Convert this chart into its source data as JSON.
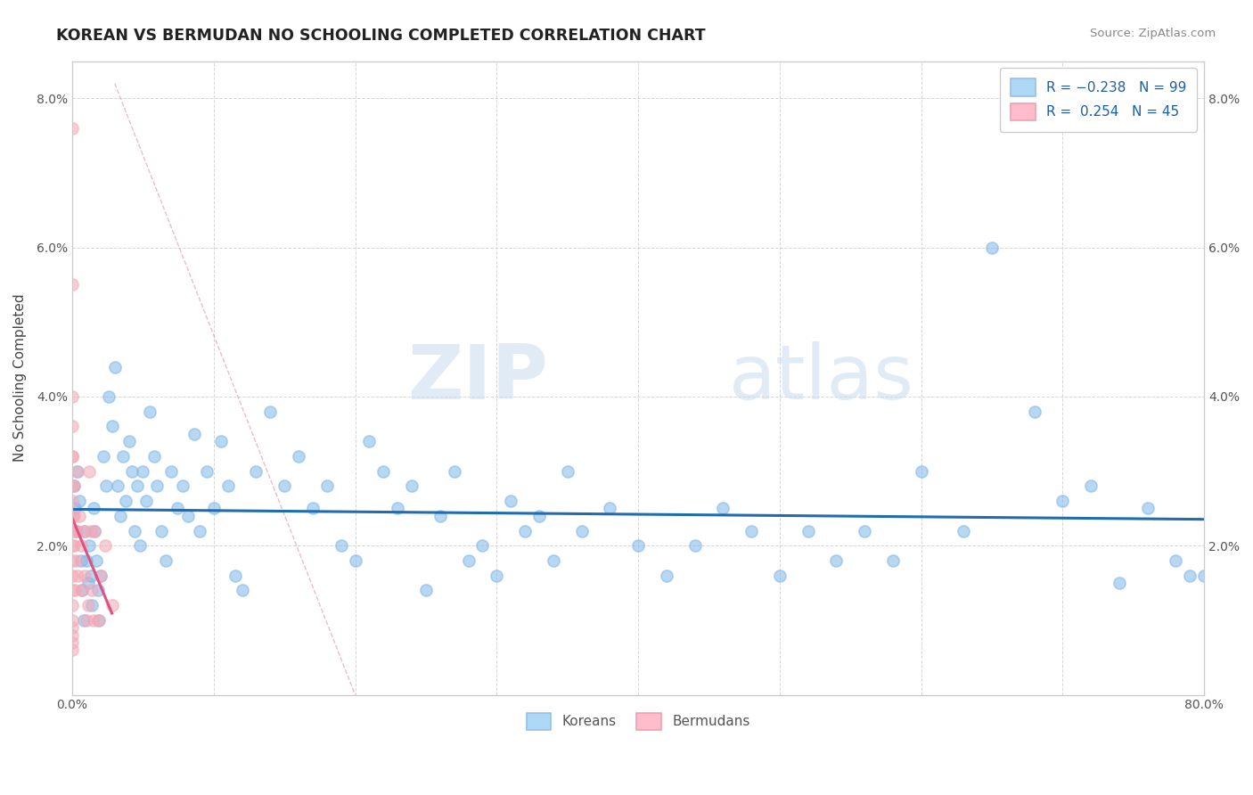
{
  "title": "KOREAN VS BERMUDAN NO SCHOOLING COMPLETED CORRELATION CHART",
  "source": "Source: ZipAtlas.com",
  "ylabel": "No Schooling Completed",
  "xlim": [
    0.0,
    0.8
  ],
  "ylim": [
    0.0,
    0.085
  ],
  "xticks": [
    0.0,
    0.1,
    0.2,
    0.3,
    0.4,
    0.5,
    0.6,
    0.7,
    0.8
  ],
  "xticklabels": [
    "0.0%",
    "",
    "",
    "",
    "",
    "",
    "",
    "",
    "80.0%"
  ],
  "yticks": [
    0.0,
    0.02,
    0.04,
    0.06,
    0.08
  ],
  "yticklabels": [
    "",
    "2.0%",
    "4.0%",
    "6.0%",
    "8.0%"
  ],
  "korean_R": -0.238,
  "korean_N": 99,
  "bermudan_R": 0.254,
  "bermudan_N": 45,
  "korean_color": "#7EB6E8",
  "bermudan_color": "#F4A7B5",
  "korean_line_color": "#1F6CB0",
  "bermudan_line_color": "#E05080",
  "legend_korean_fill": "#ADD8F6",
  "legend_bermudan_fill": "#FFBDCB",
  "watermark_zip": "ZIP",
  "watermark_atlas": "atlas",
  "background_color": "#ffffff",
  "grid_color": "#cccccc",
  "koreans_label": "Koreans",
  "bermudans_label": "Bermudans",
  "korean_x": [
    0.001,
    0.002,
    0.003,
    0.004,
    0.005,
    0.006,
    0.007,
    0.008,
    0.009,
    0.01,
    0.011,
    0.012,
    0.013,
    0.014,
    0.015,
    0.016,
    0.017,
    0.018,
    0.019,
    0.02,
    0.022,
    0.024,
    0.026,
    0.028,
    0.03,
    0.032,
    0.034,
    0.036,
    0.038,
    0.04,
    0.042,
    0.044,
    0.046,
    0.048,
    0.05,
    0.052,
    0.055,
    0.058,
    0.06,
    0.063,
    0.066,
    0.07,
    0.074,
    0.078,
    0.082,
    0.086,
    0.09,
    0.095,
    0.1,
    0.105,
    0.11,
    0.115,
    0.12,
    0.13,
    0.14,
    0.15,
    0.16,
    0.17,
    0.18,
    0.19,
    0.2,
    0.21,
    0.22,
    0.23,
    0.24,
    0.25,
    0.26,
    0.27,
    0.28,
    0.29,
    0.3,
    0.31,
    0.32,
    0.33,
    0.34,
    0.35,
    0.36,
    0.38,
    0.4,
    0.42,
    0.44,
    0.46,
    0.48,
    0.5,
    0.52,
    0.54,
    0.56,
    0.58,
    0.6,
    0.63,
    0.65,
    0.68,
    0.7,
    0.72,
    0.74,
    0.76,
    0.78,
    0.79,
    0.8
  ],
  "korean_y": [
    0.028,
    0.025,
    0.022,
    0.03,
    0.026,
    0.018,
    0.014,
    0.01,
    0.022,
    0.018,
    0.015,
    0.02,
    0.016,
    0.012,
    0.025,
    0.022,
    0.018,
    0.014,
    0.01,
    0.016,
    0.032,
    0.028,
    0.04,
    0.036,
    0.044,
    0.028,
    0.024,
    0.032,
    0.026,
    0.034,
    0.03,
    0.022,
    0.028,
    0.02,
    0.03,
    0.026,
    0.038,
    0.032,
    0.028,
    0.022,
    0.018,
    0.03,
    0.025,
    0.028,
    0.024,
    0.035,
    0.022,
    0.03,
    0.025,
    0.034,
    0.028,
    0.016,
    0.014,
    0.03,
    0.038,
    0.028,
    0.032,
    0.025,
    0.028,
    0.02,
    0.018,
    0.034,
    0.03,
    0.025,
    0.028,
    0.014,
    0.024,
    0.03,
    0.018,
    0.02,
    0.016,
    0.026,
    0.022,
    0.024,
    0.018,
    0.03,
    0.022,
    0.025,
    0.02,
    0.016,
    0.02,
    0.025,
    0.022,
    0.016,
    0.022,
    0.018,
    0.022,
    0.018,
    0.03,
    0.022,
    0.06,
    0.038,
    0.026,
    0.028,
    0.015,
    0.025,
    0.018,
    0.016,
    0.016
  ],
  "bermudan_x": [
    0.0,
    0.0,
    0.0,
    0.0,
    0.0,
    0.0,
    0.0,
    0.0,
    0.0,
    0.0,
    0.0,
    0.0,
    0.0,
    0.0,
    0.0,
    0.0,
    0.0,
    0.0,
    0.0,
    0.0,
    0.001,
    0.001,
    0.001,
    0.002,
    0.002,
    0.003,
    0.003,
    0.003,
    0.004,
    0.005,
    0.006,
    0.007,
    0.008,
    0.009,
    0.01,
    0.011,
    0.012,
    0.013,
    0.014,
    0.015,
    0.016,
    0.018,
    0.02,
    0.023,
    0.028
  ],
  "bermudan_y": [
    0.076,
    0.055,
    0.04,
    0.036,
    0.032,
    0.028,
    0.026,
    0.024,
    0.022,
    0.02,
    0.018,
    0.016,
    0.014,
    0.012,
    0.01,
    0.009,
    0.008,
    0.007,
    0.006,
    0.032,
    0.028,
    0.024,
    0.02,
    0.022,
    0.014,
    0.03,
    0.022,
    0.018,
    0.016,
    0.024,
    0.02,
    0.014,
    0.022,
    0.016,
    0.01,
    0.012,
    0.03,
    0.022,
    0.014,
    0.01,
    0.022,
    0.01,
    0.016,
    0.02,
    0.012
  ]
}
